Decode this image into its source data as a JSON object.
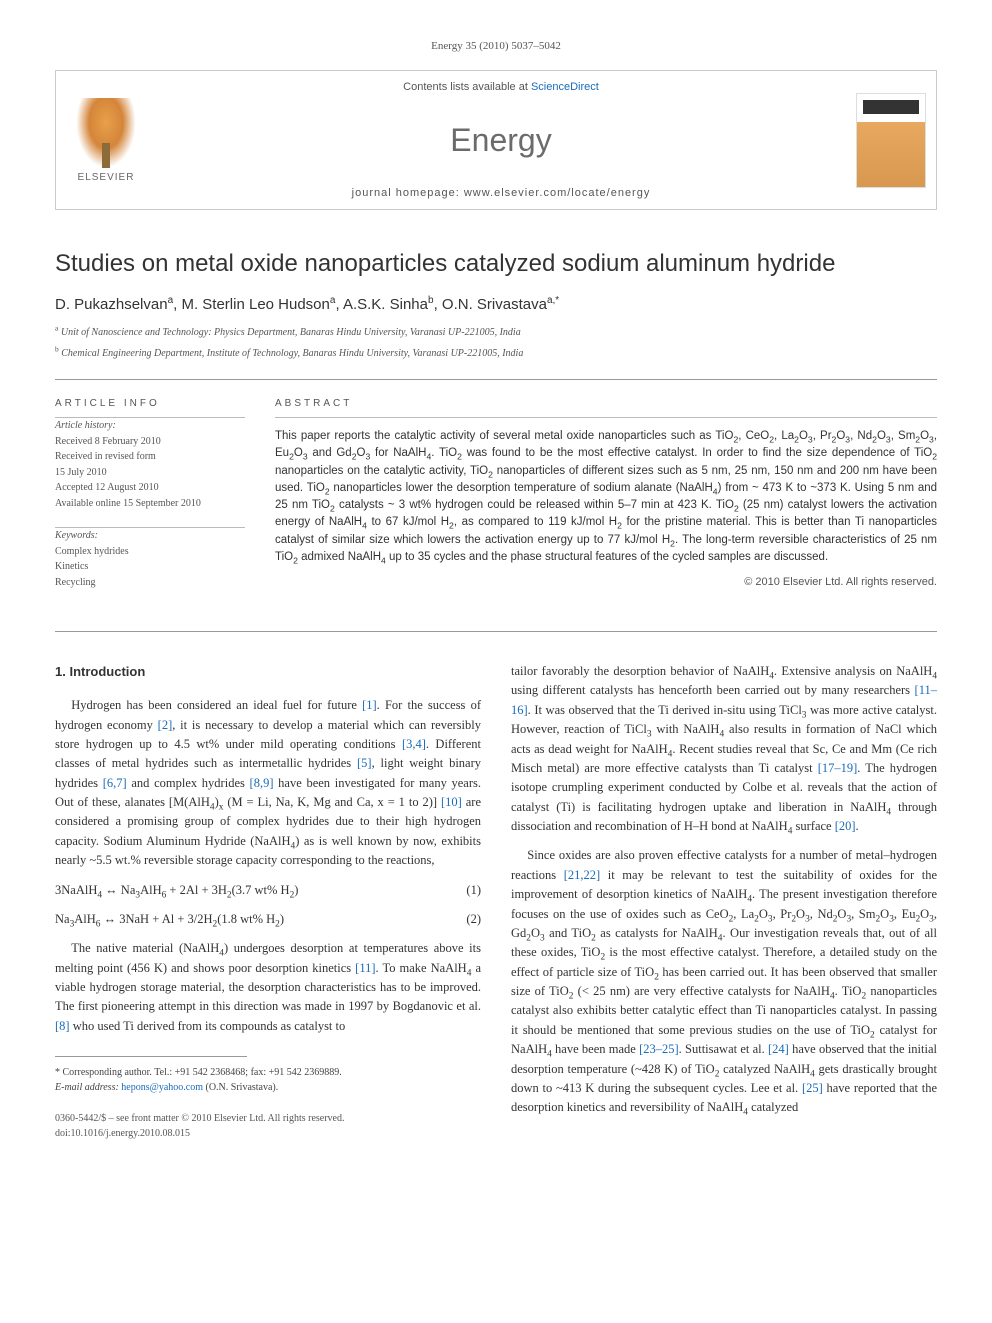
{
  "journal_reference": "Energy 35 (2010) 5037–5042",
  "header": {
    "contents_prefix": "Contents lists available at ",
    "contents_link": "ScienceDirect",
    "journal_name": "Energy",
    "homepage_prefix": "journal homepage: ",
    "homepage_url": "www.elsevier.com/locate/energy",
    "publisher_label": "ELSEVIER"
  },
  "article": {
    "title": "Studies on metal oxide nanoparticles catalyzed sodium aluminum hydride",
    "authors_html": "D. Pukazhselvan<sup>a</sup>, M. Sterlin Leo Hudson<sup>a</sup>, A.S.K. Sinha<sup>b</sup>, O.N. Srivastava<sup>a,*</sup>",
    "affiliations": [
      {
        "label": "a",
        "text": "Unit of Nanoscience and Technology: Physics Department, Banaras Hindu University, Varanasi UP-221005, India"
      },
      {
        "label": "b",
        "text": "Chemical Engineering Department, Institute of Technology, Banaras Hindu University, Varanasi UP-221005, India"
      }
    ]
  },
  "article_info": {
    "heading": "ARTICLE INFO",
    "history_label": "Article history:",
    "history": [
      "Received 8 February 2010",
      "Received in revised form",
      "15 July 2010",
      "Accepted 12 August 2010",
      "Available online 15 September 2010"
    ],
    "keywords_label": "Keywords:",
    "keywords": [
      "Complex hydrides",
      "Kinetics",
      "Recycling"
    ]
  },
  "abstract": {
    "heading": "ABSTRACT",
    "text_html": "This paper reports the catalytic activity of several metal oxide nanoparticles such as TiO<sub>2</sub>, CeO<sub>2</sub>, La<sub>2</sub>O<sub>3</sub>, Pr<sub>2</sub>O<sub>3</sub>, Nd<sub>2</sub>O<sub>3</sub>, Sm<sub>2</sub>O<sub>3</sub>, Eu<sub>2</sub>O<sub>3</sub> and Gd<sub>2</sub>O<sub>3</sub> for NaAlH<sub>4</sub>. TiO<sub>2</sub> was found to be the most effective catalyst. In order to find the size dependence of TiO<sub>2</sub> nanoparticles on the catalytic activity, TiO<sub>2</sub> nanoparticles of different sizes such as 5 nm, 25 nm, 150 nm and 200 nm have been used. TiO<sub>2</sub> nanoparticles lower the desorption temperature of sodium alanate (NaAlH<sub>4</sub>) from ~ 473 K to ~373 K. Using 5 nm and 25 nm TiO<sub>2</sub> catalysts ~ 3 wt% hydrogen could be released within 5–7 min at 423 K. TiO<sub>2</sub> (25 nm) catalyst lowers the activation energy of NaAlH<sub>4</sub> to 67 kJ/mol H<sub>2</sub>, as compared to 119 kJ/mol H<sub>2</sub> for the pristine material. This is better than Ti nanoparticles catalyst of similar size which lowers the activation energy up to 77 kJ/mol H<sub>2</sub>. The long-term reversible characteristics of 25 nm TiO<sub>2</sub> admixed NaAlH<sub>4</sub> up to 35 cycles and the phase structural features of the cycled samples are discussed.",
    "copyright": "© 2010 Elsevier Ltd. All rights reserved."
  },
  "body": {
    "section_heading": "1. Introduction",
    "left_paragraphs": [
      "Hydrogen has been considered an ideal fuel for future <a class='ref' href='#'>[1]</a>. For the success of hydrogen economy <a class='ref' href='#'>[2]</a>, it is necessary to develop a material which can reversibly store hydrogen up to 4.5 wt% under mild operating conditions <a class='ref' href='#'>[3,4]</a>. Different classes of metal hydrides such as intermetallic hydrides <a class='ref' href='#'>[5]</a>, light weight binary hydrides <a class='ref' href='#'>[6,7]</a> and complex hydrides <a class='ref' href='#'>[8,9]</a> have been investigated for many years. Out of these, alanates [M(AlH<sub>4</sub>)<sub>x</sub> (M = Li, Na, K, Mg and Ca, x = 1 to 2)] <a class='ref' href='#'>[10]</a> are considered a promising group of complex hydrides due to their high hydrogen capacity. Sodium Aluminum Hydride (NaAlH<sub>4</sub>) as is well known by now, exhibits nearly ~5.5 wt.% reversible storage capacity corresponding to the reactions,"
    ],
    "equations": [
      {
        "expr": "3NaAlH<sub>4</sub> ↔ Na<sub>3</sub>AlH<sub>6</sub> + 2Al + 3H<sub>2</sub>(3.7 wt% H<sub>2</sub>)",
        "num": "(1)"
      },
      {
        "expr": "Na<sub>3</sub>AlH<sub>6</sub> ↔ 3NaH + Al + 3/2H<sub>2</sub>(1.8 wt% H<sub>2</sub>)",
        "num": "(2)"
      }
    ],
    "left_paragraphs_2": [
      "The native material (NaAlH<sub>4</sub>) undergoes desorption at temperatures above its melting point (456 K) and shows poor desorption kinetics <a class='ref' href='#'>[11]</a>. To make NaAlH<sub>4</sub> a viable hydrogen storage material, the desorption characteristics has to be improved. The first pioneering attempt in this direction was made in 1997 by Bogdanovic et al. <a class='ref' href='#'>[8]</a> who used Ti derived from its compounds as catalyst to"
    ],
    "right_paragraphs": [
      "tailor favorably the desorption behavior of NaAlH<sub>4</sub>. Extensive analysis on NaAlH<sub>4</sub> using different catalysts has henceforth been carried out by many researchers <a class='ref' href='#'>[11–16]</a>. It was observed that the Ti derived in-situ using TiCl<sub>3</sub> was more active catalyst. However, reaction of TiCl<sub>3</sub> with NaAlH<sub>4</sub> also results in formation of NaCl which acts as dead weight for NaAlH<sub>4</sub>. Recent studies reveal that Sc, Ce and Mm (Ce rich Misch metal) are more effective catalysts than Ti catalyst <a class='ref' href='#'>[17–19]</a>. The hydrogen isotope crumpling experiment conducted by Colbe et al. reveals that the action of catalyst (Ti) is facilitating hydrogen uptake and liberation in NaAlH<sub>4</sub> through dissociation and recombination of H–H bond at NaAlH<sub>4</sub> surface <a class='ref' href='#'>[20]</a>.",
      "Since oxides are also proven effective catalysts for a number of metal–hydrogen reactions <a class='ref' href='#'>[21,22]</a> it may be relevant to test the suitability of oxides for the improvement of desorption kinetics of NaAlH<sub>4</sub>. The present investigation therefore focuses on the use of oxides such as CeO<sub>2</sub>, La<sub>2</sub>O<sub>3</sub>, Pr<sub>2</sub>O<sub>3</sub>, Nd<sub>2</sub>O<sub>3</sub>, Sm<sub>2</sub>O<sub>3</sub>, Eu<sub>2</sub>O<sub>3</sub>, Gd<sub>2</sub>O<sub>3</sub> and TiO<sub>2</sub> as catalysts for NaAlH<sub>4</sub>. Our investigation reveals that, out of all these oxides, TiO<sub>2</sub> is the most effective catalyst. Therefore, a detailed study on the effect of particle size of TiO<sub>2</sub> has been carried out. It has been observed that smaller size of TiO<sub>2</sub> (< 25 nm) are very effective catalysts for NaAlH<sub>4</sub>. TiO<sub>2</sub> nanoparticles catalyst also exhibits better catalytic effect than Ti nanoparticles catalyst. In passing it should be mentioned that some previous studies on the use of TiO<sub>2</sub> catalyst for NaAlH<sub>4</sub> have been made <a class='ref' href='#'>[23–25]</a>. Suttisawat et al. <a class='ref' href='#'>[24]</a> have observed that the initial desorption temperature (~428 K) of TiO<sub>2</sub> catalyzed NaAlH<sub>4</sub> gets drastically brought down to ~413 K during the subsequent cycles. Lee et al. <a class='ref' href='#'>[25]</a> have reported that the desorption kinetics and reversibility of NaAlH<sub>4</sub> catalyzed"
    ]
  },
  "footnotes": {
    "corresponding": "* Corresponding author. Tel.: +91 542 2368468; fax: +91 542 2369889.",
    "email_label": "E-mail address: ",
    "email": "hepons@yahoo.com",
    "email_name": " (O.N. Srivastava)."
  },
  "footer": {
    "issn_line": "0360-5442/$ – see front matter © 2010 Elsevier Ltd. All rights reserved.",
    "doi_line": "doi:10.1016/j.energy.2010.08.015"
  },
  "colors": {
    "link": "#1a6bb8",
    "text": "#333333",
    "muted": "#555555",
    "rule": "#999999"
  }
}
